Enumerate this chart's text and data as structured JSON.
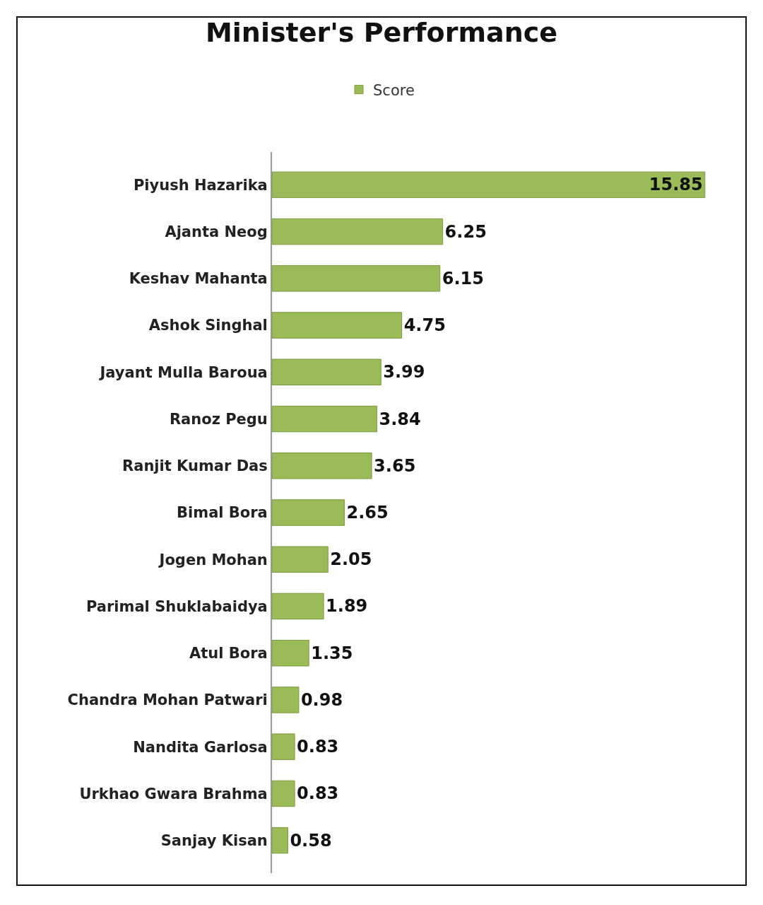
{
  "chart_data": {
    "type": "bar",
    "orientation": "horizontal",
    "title": "Minister's Performance",
    "categories": [
      "Piyush Hazarika",
      "Ajanta Neog",
      "Keshav Mahanta",
      "Ashok Singhal",
      "Jayant Mulla Baroua",
      "Ranoz Pegu",
      "Ranjit Kumar Das",
      "Bimal Bora",
      "Jogen Mohan",
      "Parimal Shuklabaidya",
      "Atul Bora",
      "Chandra Mohan Patwari",
      "Nandita Garlosa",
      "Urkhao Gwara Brahma",
      "Sanjay Kisan"
    ],
    "series": [
      {
        "name": "Score",
        "color": "#9bbb59",
        "values": [
          15.85,
          6.25,
          6.15,
          4.75,
          3.99,
          3.84,
          3.65,
          2.65,
          2.05,
          1.89,
          1.35,
          0.98,
          0.83,
          0.83,
          0.58
        ]
      }
    ],
    "data_labels": true,
    "legend": "top",
    "tick_labels": "y"
  }
}
